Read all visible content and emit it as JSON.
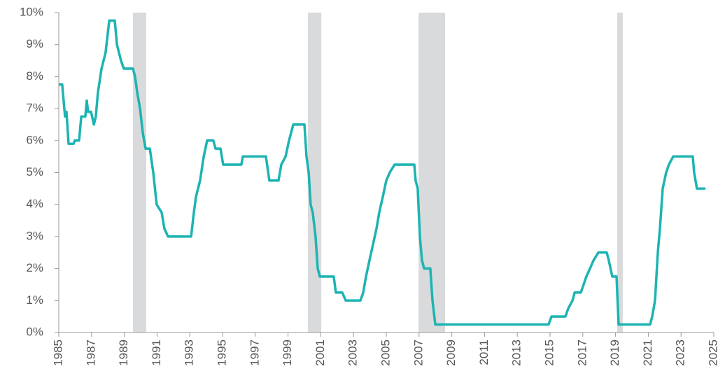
{
  "chart_data": {
    "type": "line",
    "x": [
      1985.0,
      1985.21,
      1985.38,
      1985.47,
      1985.6,
      1985.9,
      1985.98,
      1986.24,
      1986.37,
      1986.62,
      1986.71,
      1986.79,
      1986.97,
      1987.14,
      1987.26,
      1987.39,
      1987.61,
      1987.86,
      1988.08,
      1988.42,
      1988.55,
      1988.8,
      1988.97,
      1989.53,
      1989.66,
      1989.79,
      1989.96,
      1990.13,
      1990.3,
      1990.56,
      1990.77,
      1990.98,
      1991.28,
      1991.45,
      1991.67,
      1993.08,
      1993.25,
      1993.38,
      1993.63,
      1993.85,
      1994.06,
      1994.44,
      1994.57,
      1994.87,
      1995.04,
      1996.15,
      1996.24,
      1997.65,
      1997.86,
      1998.42,
      1998.59,
      1998.85,
      1999.06,
      1999.32,
      2000.0,
      2000.13,
      2000.26,
      2000.38,
      2000.51,
      2000.68,
      2000.81,
      2000.94,
      2001.79,
      2001.92,
      2002.31,
      2002.52,
      2003.42,
      2003.59,
      2003.76,
      2003.97,
      2004.19,
      2004.4,
      2004.57,
      2004.79,
      2005.0,
      2005.21,
      2005.51,
      2006.71,
      2006.79,
      2006.92,
      2007.05,
      2007.18,
      2007.31,
      2007.69,
      2007.82,
      2007.99,
      2014.91,
      2015.09,
      2015.94,
      2016.11,
      2016.37,
      2016.5,
      2016.88,
      2017.05,
      2017.22,
      2017.44,
      2017.65,
      2017.95,
      2018.46,
      2018.59,
      2018.8,
      2019.06,
      2019.19,
      2021.11,
      2021.24,
      2021.41,
      2021.58,
      2021.71,
      2021.88,
      2022.09,
      2022.26,
      2022.52,
      2023.72,
      2023.8,
      2023.97,
      2024.49
    ],
    "series": [
      {
        "color": "#1db3b3",
        "values": [
          7.75,
          7.75,
          6.75,
          6.9,
          5.9,
          5.9,
          6.0,
          6.0,
          6.75,
          6.75,
          7.25,
          6.9,
          6.9,
          6.5,
          6.75,
          7.5,
          8.25,
          8.75,
          9.75,
          9.75,
          9.0,
          8.5,
          8.25,
          8.25,
          8.0,
          7.5,
          7.0,
          6.25,
          5.75,
          5.75,
          5.0,
          4.0,
          3.75,
          3.25,
          3.0,
          3.0,
          3.75,
          4.25,
          4.75,
          5.5,
          6.0,
          6.0,
          5.75,
          5.75,
          5.25,
          5.25,
          5.5,
          5.5,
          4.75,
          4.75,
          5.25,
          5.5,
          6.0,
          6.5,
          6.5,
          5.5,
          5.0,
          4.0,
          3.75,
          3.0,
          2.0,
          1.75,
          1.75,
          1.25,
          1.25,
          1.0,
          1.0,
          1.25,
          1.75,
          2.25,
          2.75,
          3.25,
          3.75,
          4.25,
          4.75,
          5.0,
          5.25,
          5.25,
          4.75,
          4.5,
          3.0,
          2.25,
          2.0,
          2.0,
          1.0,
          0.25,
          0.25,
          0.5,
          0.5,
          0.75,
          1.0,
          1.25,
          1.25,
          1.5,
          1.75,
          2.0,
          2.25,
          2.5,
          2.5,
          2.25,
          1.75,
          1.75,
          0.25,
          0.25,
          0.5,
          1.0,
          2.5,
          3.25,
          4.5,
          5.0,
          5.25,
          5.5,
          5.5,
          5.0,
          4.5,
          4.5
        ]
      }
    ],
    "shaded_periods": [
      [
        1989.53,
        1990.34
      ],
      [
        2000.21,
        2001.03
      ],
      [
        2006.97,
        2008.59
      ],
      [
        2019.1,
        2019.44
      ]
    ],
    "shade_color": "#d9dadb",
    "xlim": [
      1985,
      2025
    ],
    "xticks": [
      1985,
      1987,
      1989,
      1991,
      1993,
      1995,
      1997,
      1999,
      2001,
      2003,
      2005,
      2007,
      2009,
      2011,
      2013,
      2015,
      2017,
      2019,
      2021,
      2023,
      2025
    ],
    "ylim": [
      0,
      10
    ],
    "yticks": [
      {
        "value": 0,
        "label": "0%"
      },
      {
        "value": 1,
        "label": "1%"
      },
      {
        "value": 2,
        "label": "2%"
      },
      {
        "value": 3,
        "label": "3%"
      },
      {
        "value": 4,
        "label": "4%"
      },
      {
        "value": 5,
        "label": "5%"
      },
      {
        "value": 6,
        "label": "6%"
      },
      {
        "value": 7,
        "label": "7%"
      },
      {
        "value": 8,
        "label": "8%"
      },
      {
        "value": 9,
        "label": "9%"
      },
      {
        "value": 10,
        "label": "10%"
      }
    ]
  }
}
